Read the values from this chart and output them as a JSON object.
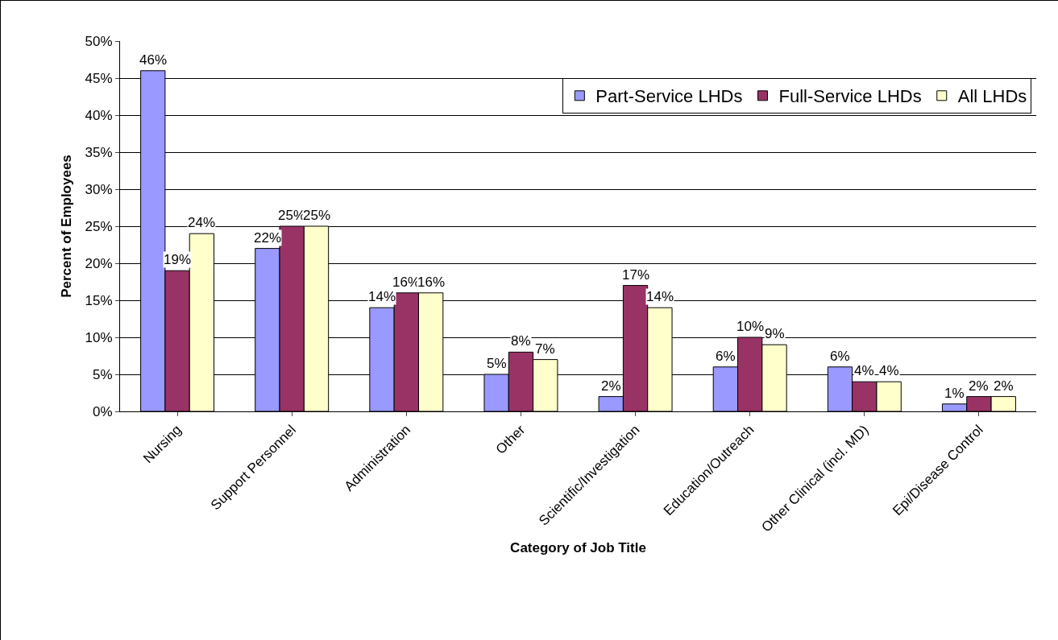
{
  "chart_data": {
    "type": "bar",
    "xlabel": "Category of Job Title",
    "ylabel": "Percent of Employees",
    "categories": [
      "Nursing",
      "Support Personnel",
      "Administration",
      "Other",
      "Scientific/Investigation",
      "Education/Outreach",
      "Other Clinical (incl. MD)",
      "Epi/Disease Control"
    ],
    "series": [
      {
        "name": "Part-Service LHDs",
        "color": "#9999ff",
        "values": [
          46,
          22,
          14,
          5,
          2,
          6,
          6,
          1
        ],
        "value_labels": [
          "46%",
          "22%",
          "14%",
          "5%",
          "2%",
          "6%",
          "6%",
          "1%"
        ]
      },
      {
        "name": "Full-Service LHDs",
        "color": "#993366",
        "values": [
          19,
          25,
          16,
          8,
          17,
          10,
          4,
          2
        ],
        "value_labels": [
          "19%",
          "25%",
          "16%",
          "8%",
          "17%",
          "10%",
          "4%",
          "2%"
        ]
      },
      {
        "name": "All LHDs",
        "color": "#ffffcc",
        "values": [
          24,
          25,
          16,
          7,
          14,
          9,
          4,
          2
        ],
        "value_labels": [
          "24%",
          "25%",
          "16%",
          "7%",
          "14%",
          "9%",
          "4%",
          "2%"
        ]
      }
    ],
    "ylim": [
      0,
      50
    ],
    "yticks": [
      {
        "value": 0,
        "label": "0%"
      },
      {
        "value": 5,
        "label": "5%"
      },
      {
        "value": 10,
        "label": "10%"
      },
      {
        "value": 15,
        "label": "15%"
      },
      {
        "value": 20,
        "label": "20%"
      },
      {
        "value": 25,
        "label": "25%"
      },
      {
        "value": 30,
        "label": "30%"
      },
      {
        "value": 35,
        "label": "35%"
      },
      {
        "value": 40,
        "label": "40%"
      },
      {
        "value": 45,
        "label": "45%"
      },
      {
        "value": 50,
        "label": "50%"
      }
    ],
    "grid": "y",
    "legend": "top right"
  }
}
